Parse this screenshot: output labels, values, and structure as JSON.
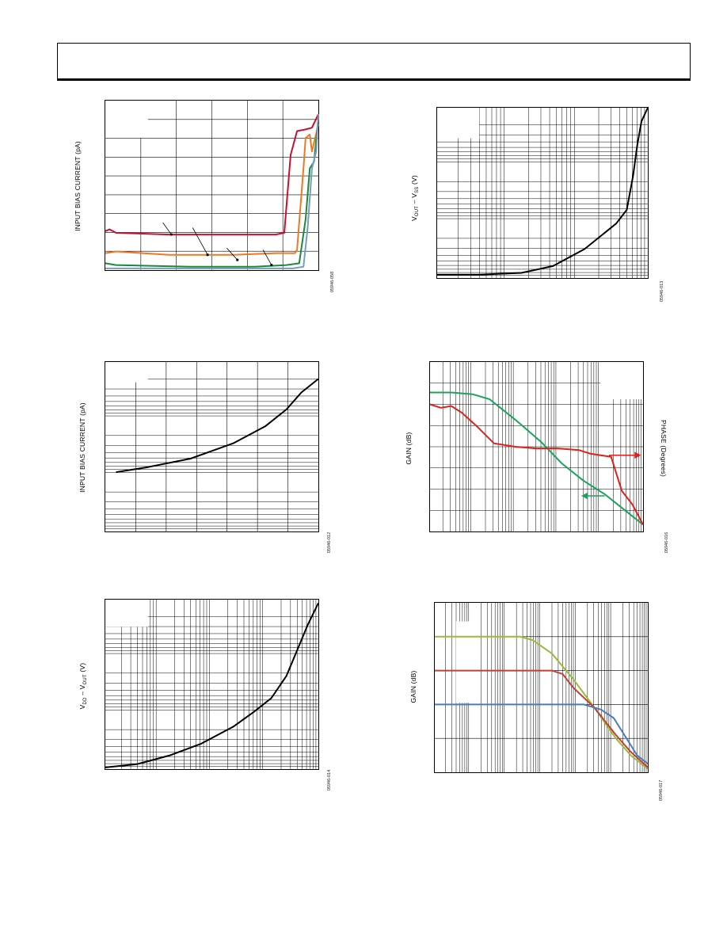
{
  "header": {},
  "figures": [
    {
      "id": "fig-bias-vs-vcm",
      "ylabel": "INPUT BIAS CURRENT (pA)",
      "figure_id": "05946-058",
      "chart_data": {
        "type": "line",
        "ylabel": "INPUT BIAS CURRENT (pA)",
        "xlabel": "",
        "grid": true,
        "series": [
          {
            "color": "#c8102e",
            "x": [
              0.0,
              0.02,
              0.05,
              0.3,
              0.6,
              0.72,
              0.8,
              0.84,
              0.87,
              0.9,
              0.94,
              0.97,
              1.0
            ],
            "y": [
              0.23,
              0.24,
              0.22,
              0.21,
              0.21,
              0.21,
              0.21,
              0.22,
              0.68,
              0.82,
              0.83,
              0.84,
              0.92
            ]
          },
          {
            "color": "#f07820",
            "x": [
              0.0,
              0.05,
              0.3,
              0.6,
              0.8,
              0.89,
              0.9,
              0.93,
              0.94,
              0.96,
              0.97,
              1.0
            ],
            "y": [
              0.1,
              0.11,
              0.09,
              0.09,
              0.1,
              0.1,
              0.12,
              0.6,
              0.78,
              0.8,
              0.7,
              0.86
            ]
          },
          {
            "color": "#1a8a3a",
            "x": [
              0.0,
              0.05,
              0.4,
              0.7,
              0.85,
              0.91,
              0.94,
              0.96,
              0.98,
              1.0
            ],
            "y": [
              0.04,
              0.03,
              0.02,
              0.02,
              0.03,
              0.04,
              0.3,
              0.6,
              0.64,
              0.9
            ]
          },
          {
            "color": "#7a9cc0",
            "x": [
              0.0,
              0.4,
              0.7,
              0.88,
              0.93,
              0.95,
              0.97,
              0.99,
              1.0
            ],
            "y": [
              0.01,
              0.01,
              0.01,
              0.01,
              0.02,
              0.25,
              0.6,
              0.7,
              0.92
            ]
          }
        ]
      }
    },
    {
      "id": "fig-vout-vss",
      "ylabel": "V_OUT – V_SS (V)",
      "ylabel_main": "V",
      "ylabel_sub1": "OUT",
      "ylabel_mid": " – V",
      "ylabel_sub2": "SS",
      "ylabel_end": " (V)",
      "figure_id": "05946-013",
      "chart_data": {
        "type": "line",
        "ylabel": "V_OUT – V_SS (V)",
        "xlabel": "",
        "grid": "log",
        "series": [
          {
            "color": "#000000",
            "x": [
              0.0,
              0.2,
              0.4,
              0.55,
              0.7,
              0.85,
              0.9,
              0.93,
              0.95,
              0.97,
              1.0
            ],
            "y": [
              0.02,
              0.02,
              0.03,
              0.07,
              0.17,
              0.32,
              0.4,
              0.6,
              0.78,
              0.92,
              1.0
            ]
          }
        ]
      }
    },
    {
      "id": "fig-bias-vs-temp",
      "ylabel": "INPUT BIAS CURRENT (pA)",
      "figure_id": "05946-012",
      "chart_data": {
        "type": "line",
        "ylabel": "INPUT BIAS CURRENT (pA)",
        "xlabel": "",
        "grid": "log-y",
        "series": [
          {
            "color": "#000000",
            "x": [
              0.05,
              0.2,
              0.4,
              0.6,
              0.75,
              0.85,
              0.92,
              1.0
            ],
            "y": [
              0.35,
              0.38,
              0.43,
              0.52,
              0.62,
              0.72,
              0.82,
              0.9
            ]
          }
        ]
      }
    },
    {
      "id": "fig-gain-phase",
      "ylabel": "GAIN (dB)",
      "ylabel_right": "PHASE (Degrees)",
      "figure_id": "05946-016",
      "chart_data": {
        "type": "line",
        "ylabel": "GAIN (dB)",
        "ylabel_right": "PHASE (Degrees)",
        "xlabel": "",
        "grid": "log-x",
        "series": [
          {
            "color": "#1aa35a",
            "x": [
              0.0,
              0.1,
              0.2,
              0.28,
              0.4,
              0.52,
              0.62,
              0.72,
              0.82,
              0.92,
              1.0
            ],
            "y": [
              0.82,
              0.82,
              0.81,
              0.78,
              0.66,
              0.53,
              0.4,
              0.3,
              0.22,
              0.12,
              0.04
            ]
          },
          {
            "color": "#e0201a",
            "x": [
              0.0,
              0.05,
              0.1,
              0.15,
              0.22,
              0.3,
              0.4,
              0.5,
              0.6,
              0.7,
              0.75,
              0.8,
              0.85,
              0.9,
              0.95,
              1.0
            ],
            "y": [
              0.75,
              0.73,
              0.74,
              0.7,
              0.62,
              0.52,
              0.5,
              0.49,
              0.49,
              0.48,
              0.46,
              0.45,
              0.44,
              0.24,
              0.16,
              0.04
            ]
          }
        ]
      }
    },
    {
      "id": "fig-vdd-vout",
      "ylabel": "V_DD – V_OUT (V)",
      "ylabel_main": "V",
      "ylabel_sub1": "DD",
      "ylabel_mid": " – V",
      "ylabel_sub2": "OUT",
      "ylabel_end": " (V)",
      "figure_id": "05946-014",
      "chart_data": {
        "type": "line",
        "ylabel": "V_DD – V_OUT (V)",
        "xlabel": "",
        "grid": "log",
        "series": [
          {
            "color": "#000000",
            "x": [
              0.0,
              0.15,
              0.3,
              0.45,
              0.6,
              0.7,
              0.78,
              0.85,
              0.9,
              0.95,
              1.0
            ],
            "y": [
              0.01,
              0.03,
              0.08,
              0.15,
              0.25,
              0.34,
              0.42,
              0.55,
              0.7,
              0.85,
              0.98
            ]
          }
        ]
      }
    },
    {
      "id": "fig-gain-multi",
      "ylabel": "GAIN (dB)",
      "figure_id": "05946-017",
      "chart_data": {
        "type": "line",
        "ylabel": "GAIN (dB)",
        "xlabel": "",
        "grid": "log-x",
        "series": [
          {
            "color": "#9abb3a",
            "x": [
              0.0,
              0.2,
              0.4,
              0.46,
              0.55,
              0.65,
              0.75,
              0.85,
              0.92,
              1.0
            ],
            "y": [
              0.8,
              0.8,
              0.8,
              0.78,
              0.7,
              0.55,
              0.38,
              0.2,
              0.1,
              0.02
            ]
          },
          {
            "color": "#c0403a",
            "x": [
              0.0,
              0.25,
              0.55,
              0.6,
              0.65,
              0.75,
              0.85,
              0.92,
              1.0
            ],
            "y": [
              0.6,
              0.6,
              0.6,
              0.58,
              0.5,
              0.38,
              0.22,
              0.12,
              0.03
            ]
          },
          {
            "color": "#4a7ac0",
            "x": [
              0.0,
              0.25,
              0.6,
              0.7,
              0.78,
              0.84,
              0.9,
              0.95,
              1.0
            ],
            "y": [
              0.4,
              0.4,
              0.4,
              0.4,
              0.37,
              0.32,
              0.2,
              0.1,
              0.05
            ]
          }
        ]
      }
    }
  ]
}
